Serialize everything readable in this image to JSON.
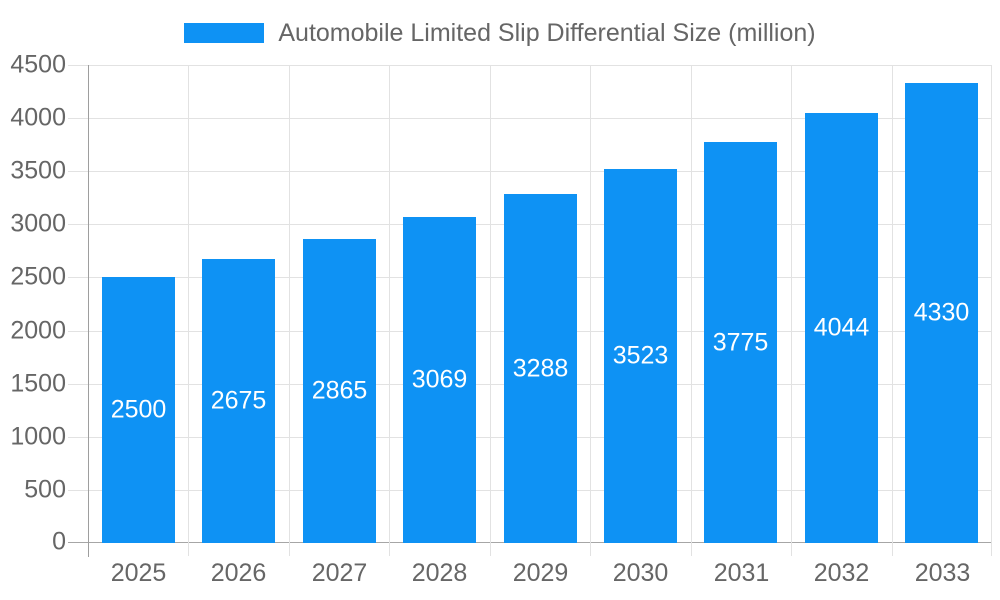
{
  "legend": {
    "label": "Automobile Limited Slip Differential Size (million)"
  },
  "chart_data": {
    "type": "bar",
    "title": "Automobile Limited Slip Differential Size (million)",
    "series_name": "Automobile Limited Slip Differential Size (million)",
    "categories": [
      "2025",
      "2026",
      "2027",
      "2028",
      "2029",
      "2030",
      "2031",
      "2032",
      "2033"
    ],
    "values": [
      2500,
      2675,
      2865,
      3069,
      3288,
      3523,
      3775,
      4044,
      4330
    ],
    "bar_value_labels": [
      "2500",
      "2675",
      "2865",
      "3069",
      "3288",
      "3523",
      "3775",
      "4044",
      "4330"
    ],
    "xlabel": "",
    "ylabel": "",
    "ylim": [
      0,
      4500
    ],
    "ytick_step": 500,
    "ytick_labels": [
      "0",
      "500",
      "1000",
      "1500",
      "2000",
      "2500",
      "3000",
      "3500",
      "4000",
      "4500"
    ],
    "grid": true,
    "legend_position": "top",
    "colors": {
      "bar": "#0E92F4",
      "bar_label_text": "#FFFFFF",
      "axis_text": "#666666",
      "grid_line": "#E2E2E2",
      "axis_line": "#9E9E9E",
      "zero_line": "#A6A6A6"
    }
  }
}
